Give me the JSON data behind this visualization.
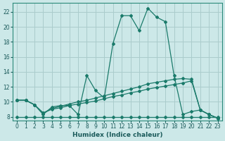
{
  "xlabel": "Humidex (Indice chaleur)",
  "background_color": "#cce8e8",
  "grid_color": "#aacccc",
  "line_color": "#1a7a6a",
  "xlim": [
    -0.5,
    23.5
  ],
  "ylim": [
    7.5,
    23.2
  ],
  "xticks": [
    0,
    1,
    2,
    3,
    4,
    5,
    6,
    7,
    8,
    9,
    10,
    11,
    12,
    13,
    14,
    15,
    16,
    17,
    18,
    19,
    20,
    21,
    22,
    23
  ],
  "yticks": [
    8,
    10,
    12,
    14,
    16,
    18,
    20,
    22
  ],
  "main_x": [
    0,
    1,
    2,
    3,
    4,
    5,
    6,
    7,
    8,
    9,
    10,
    11,
    12,
    13,
    14,
    15,
    16,
    17,
    18,
    19,
    20,
    21,
    22,
    23
  ],
  "main_y": [
    10.2,
    10.2,
    9.6,
    8.3,
    9.3,
    9.5,
    9.5,
    8.3,
    13.5,
    11.5,
    10.5,
    17.8,
    21.5,
    21.5,
    19.5,
    22.5,
    21.3,
    20.7,
    13.5,
    8.3,
    8.7,
    8.9,
    8.3,
    7.8
  ],
  "flat_x": [
    0,
    1,
    2,
    3,
    4,
    5,
    6,
    7,
    8,
    9,
    10,
    11,
    12,
    13,
    14,
    15,
    16,
    17,
    18,
    19,
    20,
    21,
    22,
    23
  ],
  "flat_y": [
    8.0,
    8.0,
    8.0,
    8.0,
    8.0,
    8.0,
    8.0,
    8.0,
    8.0,
    8.0,
    8.0,
    8.0,
    8.0,
    8.0,
    8.0,
    8.0,
    8.0,
    8.0,
    8.0,
    8.0,
    8.0,
    8.0,
    8.0,
    8.0
  ],
  "upper_x": [
    0,
    1,
    2,
    3,
    4,
    5,
    6,
    7,
    8,
    9,
    10,
    11,
    12,
    13,
    14,
    15,
    16,
    17,
    18,
    19,
    20,
    21,
    22,
    23
  ],
  "upper_y": [
    10.2,
    10.2,
    9.6,
    8.5,
    9.1,
    9.4,
    9.7,
    10.0,
    10.2,
    10.5,
    10.8,
    11.1,
    11.4,
    11.7,
    12.0,
    12.4,
    12.6,
    12.8,
    13.0,
    13.1,
    13.0,
    8.9,
    8.3,
    7.8
  ],
  "lower_x": [
    0,
    1,
    2,
    3,
    4,
    5,
    6,
    7,
    8,
    9,
    10,
    11,
    12,
    13,
    14,
    15,
    16,
    17,
    18,
    19,
    20,
    21,
    22,
    23
  ],
  "lower_y": [
    10.2,
    10.2,
    9.6,
    8.5,
    9.0,
    9.2,
    9.5,
    9.7,
    9.9,
    10.1,
    10.4,
    10.7,
    10.9,
    11.2,
    11.4,
    11.7,
    11.9,
    12.1,
    12.3,
    12.5,
    12.8,
    8.9,
    8.3,
    7.8
  ]
}
